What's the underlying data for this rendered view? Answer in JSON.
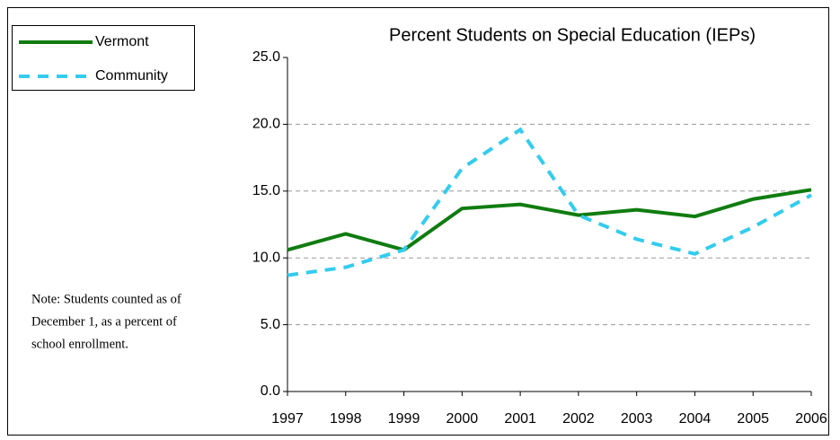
{
  "chart_data": {
    "type": "line",
    "title": "Percent Students on Special Education (IEPs)",
    "categories": [
      "1997",
      "1998",
      "1999",
      "2000",
      "2001",
      "2002",
      "2003",
      "2004",
      "2005",
      "2006"
    ],
    "series": [
      {
        "name": "Vermont",
        "color": "#107c10",
        "dash": "solid",
        "values": [
          10.6,
          11.8,
          10.6,
          13.7,
          14.0,
          13.2,
          13.6,
          13.1,
          14.4,
          15.1
        ]
      },
      {
        "name": "Community",
        "color": "#33ccee",
        "dash": "dashed",
        "values": [
          8.7,
          9.3,
          10.6,
          16.7,
          19.6,
          13.2,
          11.4,
          10.3,
          12.3,
          14.7
        ]
      }
    ],
    "ylim": [
      0,
      25
    ],
    "yticks": [
      {
        "value": 0,
        "label": "0.0"
      },
      {
        "value": 5,
        "label": "5.0"
      },
      {
        "value": 10,
        "label": "10.0"
      },
      {
        "value": 15,
        "label": "15.0"
      },
      {
        "value": 20,
        "label": "20.0"
      },
      {
        "value": 25,
        "label": "25.0"
      }
    ],
    "grid": true,
    "legend": "top-left",
    "annotation": [
      "Note: Students counted as of",
      "December 1, as a percent of",
      "school enrollment."
    ]
  }
}
